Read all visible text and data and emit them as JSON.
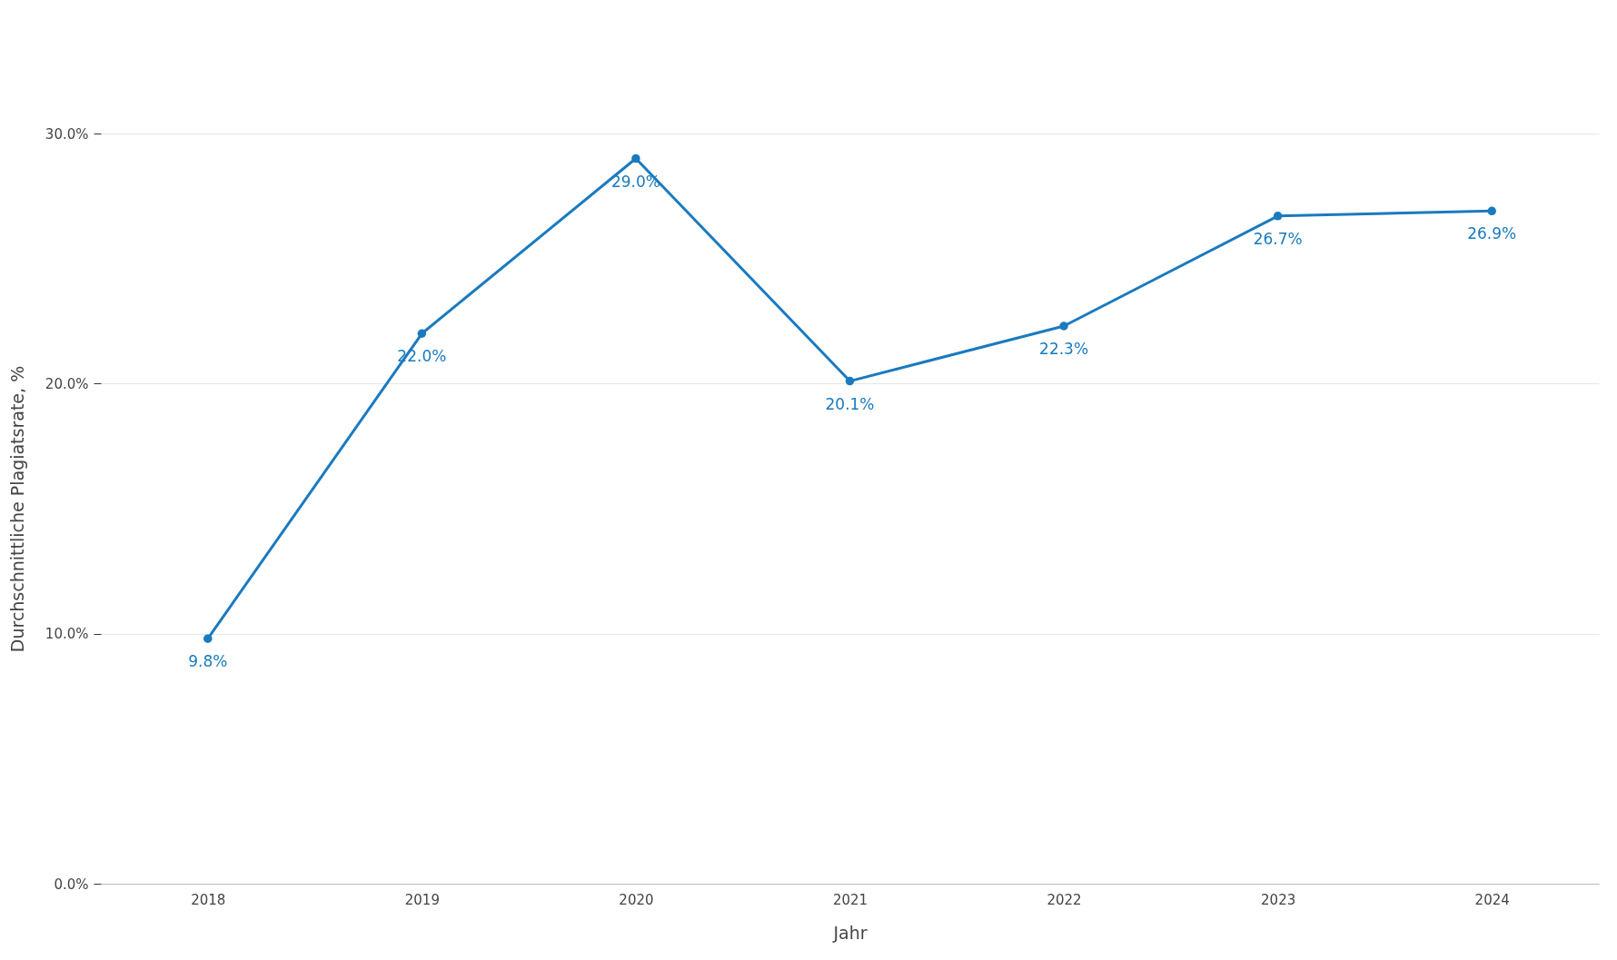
{
  "chart_data": {
    "type": "line",
    "xlabel": "Jahr",
    "ylabel": "Durchschnittliche Plagiatsrate, %",
    "categories": [
      "2018",
      "2019",
      "2020",
      "2021",
      "2022",
      "2023",
      "2024"
    ],
    "series": [
      {
        "color": "#1a7abf",
        "values": [
          9.8,
          22.0,
          29.0,
          20.1,
          22.3,
          26.7,
          26.9
        ],
        "value_labels": [
          "9.8%",
          "22.0%",
          "29.0%",
          "20.1%",
          "22.3%",
          "26.7%",
          "26.9%"
        ]
      }
    ],
    "ylim": [
      0,
      30
    ],
    "yticks": [
      {
        "value": 0,
        "label": "0.0%"
      },
      {
        "value": 10,
        "label": "10.0%"
      },
      {
        "value": 20,
        "label": "20.0%"
      },
      {
        "value": 30,
        "label": "30.0%"
      }
    ],
    "grid": "y",
    "legend": false,
    "marker": "circle",
    "line_style": "solid"
  }
}
